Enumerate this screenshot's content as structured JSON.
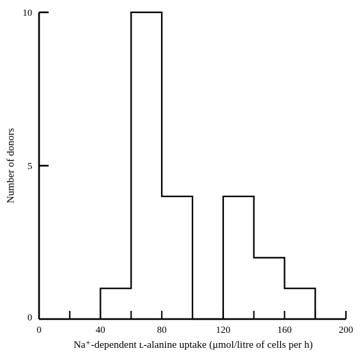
{
  "chart_data": {
    "type": "histogram",
    "title": "",
    "xlabel": "Na⁺-dependent ʟ-alanine uptake (μmol/litre of cells per h)",
    "ylabel": "Number of donors",
    "xlim": [
      0,
      200
    ],
    "ylim": [
      0,
      10
    ],
    "x_ticks": [
      0,
      40,
      80,
      120,
      160,
      200
    ],
    "x_minor_ticks": [
      20,
      60,
      100,
      140,
      180
    ],
    "y_ticks": [
      0,
      5,
      10
    ],
    "grid": false,
    "legend": "none",
    "bins": [
      {
        "start": 40,
        "end": 60,
        "count": 1
      },
      {
        "start": 60,
        "end": 80,
        "count": 10
      },
      {
        "start": 80,
        "end": 100,
        "count": 4
      },
      {
        "start": 100,
        "end": 120,
        "count": 0
      },
      {
        "start": 120,
        "end": 140,
        "count": 4
      },
      {
        "start": 140,
        "end": 160,
        "count": 2
      },
      {
        "start": 160,
        "end": 180,
        "count": 1
      }
    ],
    "line_color": "#000000"
  }
}
